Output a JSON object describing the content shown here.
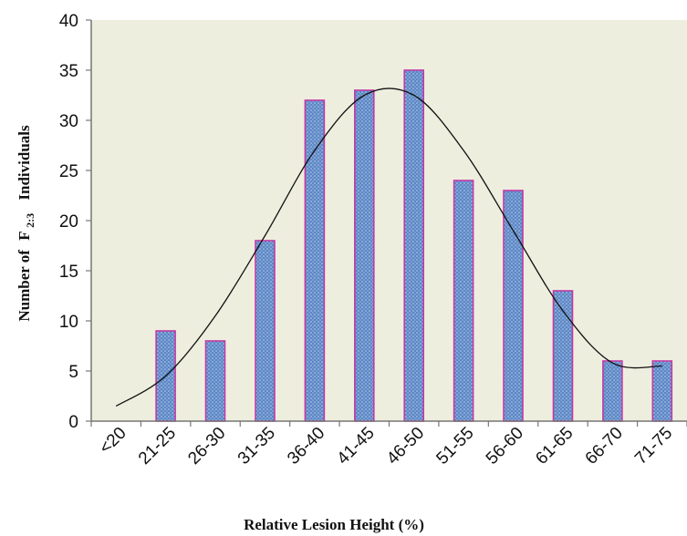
{
  "chart_data": {
    "type": "bar",
    "title": "",
    "xlabel": "Relative Lesion Height (%)",
    "ylabel": {
      "prefix": "Number of",
      "letter": "F",
      "subscript": "2:3",
      "suffix": "Individuals"
    },
    "categories": [
      "<20",
      "21-25",
      "26-30",
      "31-35",
      "36-40",
      "41-45",
      "46-50",
      "51-55",
      "56-60",
      "61-65",
      "66-70",
      "71-75"
    ],
    "values": [
      0,
      9,
      8,
      18,
      32,
      33,
      35,
      24,
      23,
      13,
      6,
      6
    ],
    "ylim": [
      0,
      40
    ],
    "yticks": [
      0,
      5,
      10,
      15,
      20,
      25,
      30,
      35,
      40
    ],
    "grid": false,
    "legend": "none",
    "trend_curve": {
      "type": "smooth",
      "points": [
        {
          "x": "<20",
          "y": 1.5
        },
        {
          "x": "21-25",
          "y": 4.5
        },
        {
          "x": "26-30",
          "y": 10.5
        },
        {
          "x": "31-35",
          "y": 18.5
        },
        {
          "x": "36-40",
          "y": 27
        },
        {
          "x": "41-45",
          "y": 32.5
        },
        {
          "x": "46-50",
          "y": 32.5
        },
        {
          "x": "51-55",
          "y": 27
        },
        {
          "x": "56-60",
          "y": 19
        },
        {
          "x": "61-65",
          "y": 11
        },
        {
          "x": "66-70",
          "y": 5.8
        },
        {
          "x": "71-75",
          "y": 5.5
        }
      ]
    },
    "colors": {
      "plot_background": "#EEEEDF",
      "bar_fill": "#5B87C6",
      "bar_dots": "#C9D8EE",
      "bar_edge": "#C23AA5",
      "axis": "#777777",
      "curve": "#111111"
    }
  }
}
